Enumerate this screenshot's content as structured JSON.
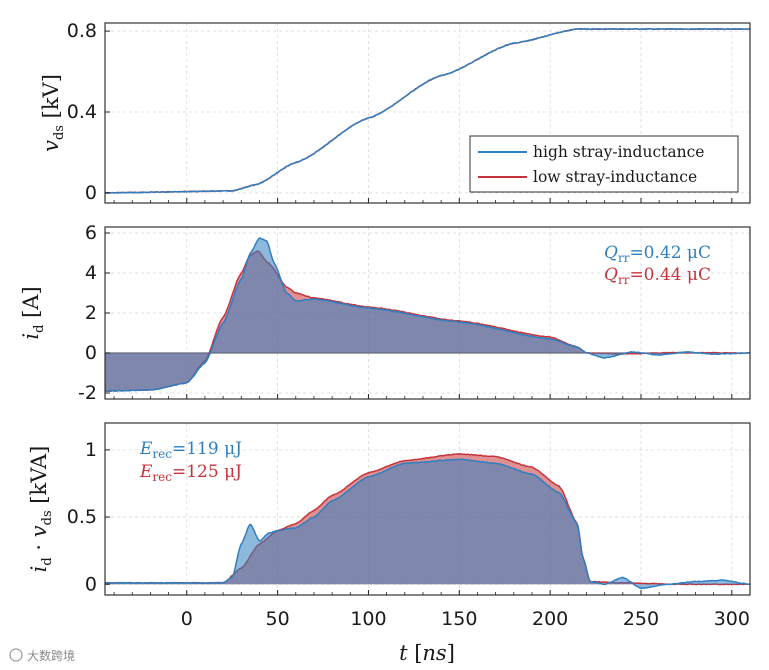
{
  "chart_data": [
    {
      "type": "line",
      "ylabel": "v_ds [kV]",
      "xlim": [
        -45,
        310
      ],
      "ylim": [
        -0.05,
        0.84
      ],
      "yticks": [
        0,
        0.4,
        0.8
      ],
      "ytick_labels": [
        "0",
        "0.4",
        "0.8"
      ],
      "legend": [
        "high stray-inductance",
        "low stray-inductance"
      ],
      "legend_position": "center-right",
      "series": [
        {
          "name": "high stray-inductance",
          "color": "#2f7fc1",
          "x": [
            -45,
            25,
            38,
            60,
            100,
            140,
            180,
            215,
            310
          ],
          "y": [
            0,
            0.01,
            0.04,
            0.15,
            0.37,
            0.58,
            0.74,
            0.81,
            0.81
          ]
        },
        {
          "name": "low stray-inductance",
          "color": "#c6343b",
          "x": [
            -45,
            25,
            38,
            60,
            100,
            140,
            180,
            215,
            310
          ],
          "y": [
            0,
            0.01,
            0.04,
            0.15,
            0.37,
            0.58,
            0.74,
            0.81,
            0.81
          ]
        }
      ]
    },
    {
      "type": "area",
      "ylabel": "i_d [A]",
      "xlim": [
        -45,
        310
      ],
      "ylim": [
        -2.3,
        6.3
      ],
      "yticks": [
        -2,
        0,
        2,
        4,
        6
      ],
      "ytick_labels": [
        "-2",
        "0",
        "2",
        "4",
        "6"
      ],
      "annotations": [
        {
          "prefix": "Q",
          "sub": "rr",
          "text": "=0.42 μC",
          "color": "#2f7fc1"
        },
        {
          "prefix": "Q",
          "sub": "rr",
          "text": "=0.44 μC",
          "color": "#c6343b"
        }
      ],
      "series": [
        {
          "name": "high stray-inductance",
          "color": "#2f7fc1",
          "x": [
            -45,
            -20,
            0,
            10,
            20,
            30,
            35,
            40,
            44,
            48,
            55,
            60,
            70,
            100,
            150,
            200,
            215,
            220,
            230,
            245,
            260,
            275,
            290,
            310
          ],
          "y": [
            -1.9,
            -1.85,
            -1.5,
            -0.5,
            1.5,
            3.7,
            5.0,
            5.75,
            5.6,
            4.5,
            3.0,
            2.6,
            2.7,
            2.25,
            1.55,
            0.7,
            0.3,
            0.0,
            -0.25,
            0.05,
            -0.1,
            0.05,
            -0.05,
            0.0
          ]
        },
        {
          "name": "low stray-inductance",
          "color": "#c6343b",
          "x": [
            -45,
            -20,
            0,
            10,
            20,
            30,
            35,
            39,
            45,
            55,
            60,
            70,
            100,
            150,
            200,
            215,
            220,
            240,
            270,
            310
          ],
          "y": [
            -1.9,
            -1.85,
            -1.5,
            -0.4,
            1.8,
            4.0,
            4.9,
            5.1,
            4.5,
            3.3,
            3.0,
            2.75,
            2.3,
            1.6,
            0.8,
            0.3,
            0.0,
            -0.05,
            0.02,
            0.0
          ]
        }
      ]
    },
    {
      "type": "area",
      "xlabel": "t [ns]",
      "ylabel": "i_d · v_ds [kVA]",
      "xlim": [
        -45,
        310
      ],
      "ylim": [
        -0.08,
        1.2
      ],
      "yticks": [
        0,
        0.5,
        1
      ],
      "ytick_labels": [
        "0",
        "0.5",
        "1"
      ],
      "xticks": [
        0,
        50,
        100,
        150,
        200,
        250,
        300
      ],
      "xtick_labels": [
        "0",
        "50",
        "100",
        "150",
        "200",
        "250",
        "300"
      ],
      "annotations": [
        {
          "prefix": "E",
          "sub": "rec",
          "text": "=119 μJ",
          "color": "#2f7fc1"
        },
        {
          "prefix": "E",
          "sub": "rec",
          "text": "=125 μJ",
          "color": "#c6343b"
        }
      ],
      "series": [
        {
          "name": "high stray-inductance",
          "color": "#2f7fc1",
          "x": [
            -45,
            20,
            25,
            30,
            35,
            40,
            45,
            50,
            60,
            70,
            80,
            100,
            120,
            150,
            170,
            190,
            205,
            215,
            218,
            222,
            230,
            240,
            250,
            265,
            280,
            295,
            310
          ],
          "y": [
            0.01,
            0.01,
            0.05,
            0.3,
            0.45,
            0.32,
            0.38,
            0.4,
            0.42,
            0.5,
            0.62,
            0.8,
            0.9,
            0.93,
            0.9,
            0.82,
            0.68,
            0.45,
            0.2,
            0.02,
            0.0,
            0.05,
            -0.03,
            0.0,
            0.02,
            0.03,
            0.0
          ]
        },
        {
          "name": "low stray-inductance",
          "color": "#c6343b",
          "x": [
            -45,
            20,
            30,
            40,
            50,
            60,
            70,
            80,
            100,
            120,
            150,
            170,
            190,
            205,
            215,
            218,
            222,
            240,
            270,
            310
          ],
          "y": [
            0.01,
            0.01,
            0.12,
            0.3,
            0.4,
            0.45,
            0.55,
            0.66,
            0.83,
            0.92,
            0.97,
            0.95,
            0.87,
            0.73,
            0.45,
            0.2,
            0.02,
            0.01,
            0.0,
            0.0
          ]
        }
      ]
    }
  ],
  "watermark": "大数跨境"
}
